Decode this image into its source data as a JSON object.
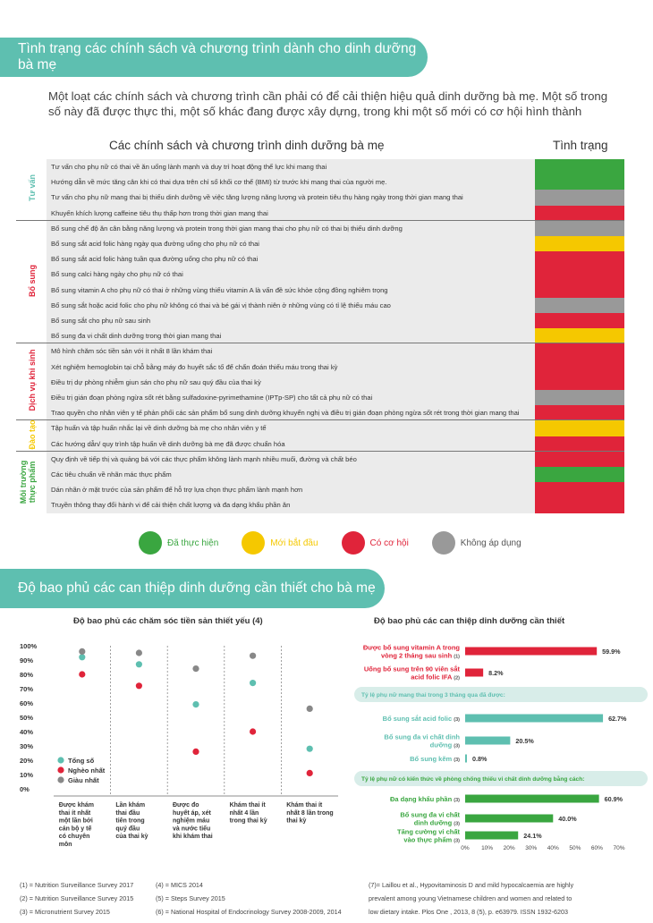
{
  "section1": {
    "title": "Tình trạng các chính sách và chương trình dành cho dinh dưỡng bà mẹ",
    "intro": "Một loạt các chính sách và chương trình cần phải có để cải thiện hiệu quả dinh dưỡng bà mẹ. Một số trong số này đã được thực thi, một số khác đang được xây dựng, trong khi một số mới có cơ hội hình thành",
    "table_header": "Các chính sách và chương trình dinh dưỡng bà mẹ",
    "status_header": "Tình trạng",
    "categories": [
      {
        "label": "Tư vấn",
        "color": "#5ebfb0"
      },
      {
        "label": "Bổ sung",
        "color": "#e0243a"
      },
      {
        "label": "Dịch vụ khi sinh",
        "color": "#e0243a"
      },
      {
        "label": "Đào tạo",
        "color": "#f5c800"
      },
      {
        "label": "Môi trường thực phẩm",
        "color": "#3aa640"
      }
    ],
    "rows": [
      {
        "text": "Tư vấn cho phụ nữ có thai về ăn uống lành mạnh và duy trì hoạt động thể lực khi mang thai",
        "status": "green"
      },
      {
        "text": "Hướng dẫn về mức tăng cân khi có thai dựa trên chỉ số khối cơ thể (BMI) từ trước khi mang thai của người mẹ.",
        "status": "green"
      },
      {
        "text": "Tư vấn cho phụ nữ mang thai bị thiếu dinh dưỡng về việc tăng lượng năng lượng và protein tiêu thụ hàng ngày trong thời gian mang thai",
        "status": "gray"
      },
      {
        "text": "Khuyến khích lượng caffeine tiêu thụ thấp hơn trong thời gian mang thai",
        "status": "red"
      },
      {
        "text": "Bổ sung chế độ ăn cân bằng năng lượng và protein trong thời gian mang thai cho phụ nữ có thai bị thiếu dinh dưỡng",
        "status": "gray"
      },
      {
        "text": "Bổ sung sắt acid folic hàng ngày qua đường uống cho phụ nữ có thai",
        "status": "yellow"
      },
      {
        "text": "Bổ sung sắt acid folic hàng tuần qua đường uống cho phụ nữ có thai",
        "status": "red"
      },
      {
        "text": "Bổ sung calci hàng ngày cho phụ nữ có thai",
        "status": "red"
      },
      {
        "text": "Bổ sung vitamin A cho phụ nữ có thai ở những vùng thiếu vitamin A là vấn đề sức khỏe cộng đồng nghiêm trọng",
        "status": "red"
      },
      {
        "text": "Bổ sung sắt hoặc acid folic cho phụ nữ không có thai và bé gái vị thành niên ở những vùng có tỉ lệ thiếu máu cao",
        "status": "gray"
      },
      {
        "text": "Bổ sung sắt cho phụ nữ sau sinh",
        "status": "red"
      },
      {
        "text": "Bổ sung đa vi chất dinh dưỡng trong thời gian mang thai",
        "status": "yellow"
      },
      {
        "text": "Mô hình chăm sóc tiền sản với ít nhất 8 lần khám thai",
        "status": "red"
      },
      {
        "text": "Xét nghiệm hemoglobin tại chỗ bằng máy đo huyết sắc tố để chẩn đoán thiếu máu trong thai kỳ",
        "status": "red"
      },
      {
        "text": "Điều trị dự phòng nhiễm giun sán cho phụ nữ sau quý đầu của thai kỳ",
        "status": "red"
      },
      {
        "text": "Điều trị gián đoạn phòng ngừa sốt rét bằng sulfadoxine-pyrimethamine (IPTp-SP) cho tất cả phụ nữ có thai",
        "status": "gray"
      },
      {
        "text": "Trao quyền cho nhân viên y tế phản phối các sản phẩm bổ sung dinh dưỡng khuyến nghị và điều trị gián đoạn phòng ngừa sốt rét trong thời gian mang thai",
        "status": "red"
      },
      {
        "text": "Tập huấn và tập huấn nhắc lại về dinh dưỡng bà mẹ cho nhân viên y tế",
        "status": "yellow"
      },
      {
        "text": "Các hướng dẫn/ quy trình tập huấn về dinh dưỡng bà mẹ đã được chuẩn hóa",
        "status": "red"
      },
      {
        "text": "Quy định về tiếp thị và quảng bá với các thực phẩm không lành mạnh nhiều muối, đường và chất béo",
        "status": "red"
      },
      {
        "text": "Các tiêu chuẩn về nhãn mác thực phẩm",
        "status": "green"
      },
      {
        "text": "Dán nhãn ở mặt trước của sản phẩm để hỗ trợ lựa chọn thực phẩm lành mạnh hơn",
        "status": "red"
      },
      {
        "text": "Truyền thông thay đổi hành vi để cải thiện chất lượng và đa dạng khẩu phần ăn",
        "status": "red"
      }
    ],
    "status_colors": {
      "green": "#3aa640",
      "yellow": "#f5c800",
      "red": "#e0243a",
      "gray": "#999999"
    },
    "legend": [
      {
        "key": "green",
        "label": "Đã thực hiện",
        "text_color": "#3aa640"
      },
      {
        "key": "yellow",
        "label": "Mới bắt đầu",
        "text_color": "#f5c800"
      },
      {
        "key": "red",
        "label": "Có cơ hội",
        "text_color": "#e0243a"
      },
      {
        "key": "gray",
        "label": "Không áp dụng",
        "text_color": "#555555"
      }
    ]
  },
  "section2": {
    "title": "Độ bao phủ các can thiệp dinh dưỡng cần thiết cho bà mẹ"
  },
  "chart_data": [
    {
      "type": "scatter",
      "title": "Độ bao phủ các chăm sóc tiền sản thiết yếu (4)",
      "ylim": [
        0,
        100
      ],
      "y_ticks": [
        "0%",
        "10%",
        "20%",
        "30%",
        "40%",
        "50%",
        "60%",
        "70%",
        "80%",
        "90%",
        "100%"
      ],
      "categories": [
        [
          "Được khám",
          "thai ít nhất",
          "một lần bởi",
          "cán bộ y tế",
          "có chuyên",
          "môn"
        ],
        [
          "Lần khám",
          "thai đầu",
          "tiên trong",
          "quý đầu",
          "của thai kỳ"
        ],
        [
          "Được đo",
          "huyết áp, xét",
          "nghiệm máu",
          "và nước tiểu",
          "khi khám thai"
        ],
        [
          "Khám thai ít",
          "nhất 4 lần",
          "trong thai kỳ"
        ],
        [
          "Khám thai ít",
          "nhất 8 lần trong",
          "thai kỳ"
        ]
      ],
      "series": [
        {
          "name": "Tổng số",
          "color": "#5ebfb0",
          "values": [
            92,
            87,
            59,
            74,
            28
          ]
        },
        {
          "name": "Nghèo nhất",
          "color": "#e0243a",
          "values": [
            80,
            72,
            26,
            40,
            11
          ]
        },
        {
          "name": "Giàu nhất",
          "color": "#888888",
          "values": [
            96,
            95,
            84,
            93,
            56
          ]
        }
      ]
    },
    {
      "type": "bar",
      "title": "Độ bao phủ các can thiệp dinh dưỡng cần thiết",
      "xlim": [
        0,
        70
      ],
      "x_ticks": [
        "0%",
        "10%",
        "20%",
        "30%",
        "40%",
        "50%",
        "60%",
        "70%"
      ],
      "groups": [
        {
          "header": "",
          "color": "#e0243a",
          "bars": [
            {
              "label": [
                "Được bổ sung vitamin A trong",
                "vòng 2 tháng sau sinh"
              ],
              "ref": "(1)",
              "value": 59.9,
              "value_label": "59.9%"
            },
            {
              "label": [
                "Uống bổ sung trên 90 viên sắt",
                "acid folic IFA"
              ],
              "ref": "(2)",
              "value": 8.2,
              "value_label": "8.2%"
            }
          ]
        },
        {
          "header": "Tỷ lệ phụ nữ mang thai trong 3 tháng qua đã được:",
          "color": "#5ebfb0",
          "bars": [
            {
              "label": [
                "Bổ sung sắt acid folic"
              ],
              "ref": "(3)",
              "value": 62.7,
              "value_label": "62.7%"
            },
            {
              "label": [
                "Bổ sung đa vi chất dinh",
                "dưỡng"
              ],
              "ref": "(3)",
              "value": 20.5,
              "value_label": "20.5%"
            },
            {
              "label": [
                "Bổ sung kẽm"
              ],
              "ref": "(3)",
              "value": 0.8,
              "value_label": "0.8%"
            }
          ]
        },
        {
          "header": "Tỷ lệ phụ nữ có kiến  thức về phòng chống thiếu vi chất dinh dưỡng bằng cách:",
          "color": "#3aa640",
          "bars": [
            {
              "label": [
                "Đa dạng khẩu phần"
              ],
              "ref": "(3)",
              "value": 60.9,
              "value_label": "60.9%"
            },
            {
              "label": [
                "Bổ sung đa vi chất",
                "dinh dưỡng"
              ],
              "ref": "(3)",
              "value": 40.0,
              "value_label": "40.0%"
            },
            {
              "label": [
                "Tăng cường vi chất",
                "vào thực phẩm"
              ],
              "ref": "(3)",
              "value": 24.1,
              "value_label": "24.1%"
            }
          ]
        }
      ]
    }
  ],
  "sources": {
    "col1": [
      "(1) = Nutrition Surveillance Survey 2017",
      "(2) = Nutrition Surveillance Survey 2015",
      "(3) = Micronutrient Survey 2015"
    ],
    "col2": [
      "(4) = MICS 2014",
      "(5) = Steps Survey 2015",
      "(6) = National Hospital of Endocrinology Survey 2008-2009, 2014"
    ],
    "col3": [
      "(7)= Laillou et al., Hypovitaminosis D and mild hypocalcaemia are highly",
      "prevalent among young Vietnamese children and women and related to",
      "low dietary intake. Plos One , 2013, 8 (5), p. e63979. ISSN 1932-6203"
    ]
  }
}
